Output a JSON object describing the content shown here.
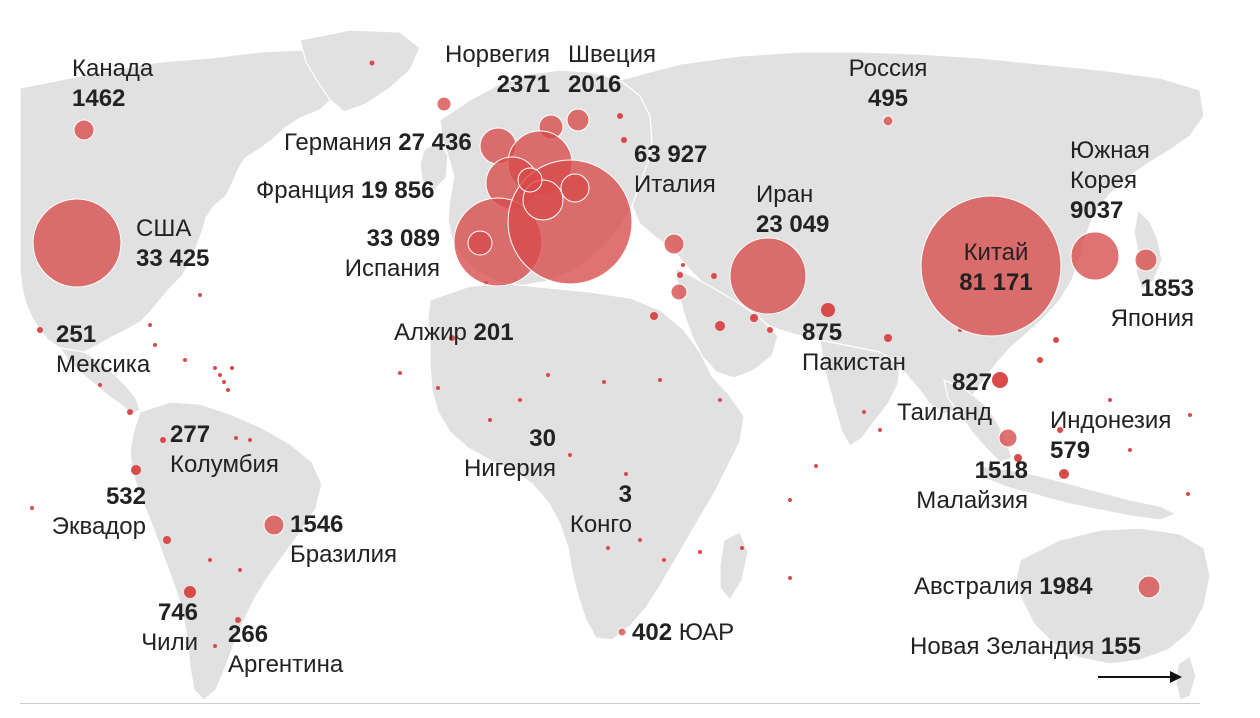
{
  "map": {
    "bubble_color": "#d94a4a",
    "land_color": "#e1e1e1",
    "countries": [
      {
        "name": "Канада",
        "value": "1462"
      },
      {
        "name": "Норвегия",
        "value": "2371"
      },
      {
        "name": "Швеция",
        "value": "2016"
      },
      {
        "name": "Россия",
        "value": "495"
      },
      {
        "name": "Германия",
        "value": "27 436"
      },
      {
        "name": "Италия",
        "value": "63 927"
      },
      {
        "name": "Франция",
        "value": "19 856"
      },
      {
        "name": "Южная Корея",
        "name_line1": "Южная",
        "name_line2": "Корея",
        "value": "9037"
      },
      {
        "name": "Иран",
        "value": "23 049"
      },
      {
        "name": "США",
        "value": "33 425"
      },
      {
        "name": "Испания",
        "value": "33 089"
      },
      {
        "name": "Китай",
        "value": "81 171"
      },
      {
        "name": "Япония",
        "value": "1853"
      },
      {
        "name": "Мексика",
        "value": "251"
      },
      {
        "name": "Алжир",
        "value": "201"
      },
      {
        "name": "Пакистан",
        "value": "875"
      },
      {
        "name": "Таиланд",
        "value": "827"
      },
      {
        "name": "Колумбия",
        "value": "277"
      },
      {
        "name": "Нигерия",
        "value": "30"
      },
      {
        "name": "Индонезия",
        "value": "579"
      },
      {
        "name": "Малайзия",
        "value": "1518"
      },
      {
        "name": "Эквадор",
        "value": "532"
      },
      {
        "name": "Конго",
        "value": "3"
      },
      {
        "name": "Бразилия",
        "value": "1546"
      },
      {
        "name": "Австралия",
        "value": "1984"
      },
      {
        "name": "Чили",
        "value": "746"
      },
      {
        "name": "Аргентина",
        "value": "266"
      },
      {
        "name": "ЮАР",
        "value": "402"
      },
      {
        "name": "Новая Зеландия",
        "value": "155"
      }
    ]
  }
}
